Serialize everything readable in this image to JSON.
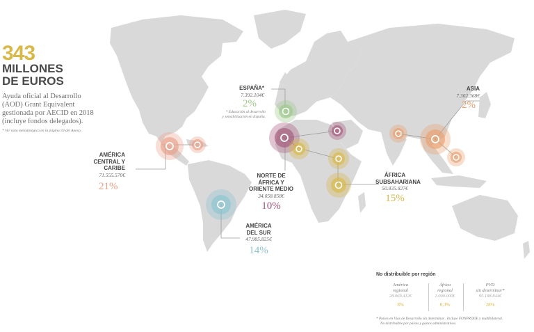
{
  "header": {
    "amount": "343",
    "line1": "MILLONES",
    "line2": "DE EUROS",
    "description": [
      "Ayuda oficial al Desarrollo",
      "(AOD) Grant Equivalent",
      "gestionada por AECID en 2018",
      "(incluye fondos delegados)."
    ],
    "note": "* Ver nota metodológica en la página 59 del Anexo."
  },
  "colors": {
    "america_central": "#e8a08a",
    "espana": "#9cc98a",
    "norte_africa": "#a5577a",
    "africa_subsahariana": "#d9b84a",
    "asia": "#e8a070",
    "america_sur": "#8cc4d0",
    "map": "#d9d9d9"
  },
  "regions": {
    "america_central": {
      "name": [
        "AMÉRICA",
        "CENTRAL Y",
        "CARIBE"
      ],
      "amount": "71.555.570€",
      "pct": "21%"
    },
    "espana": {
      "name": [
        "ESPAÑA*"
      ],
      "amount": "7.392.104€",
      "pct": "2%",
      "note": [
        "* Educación al desarrollo",
        "y sensibilización en España."
      ]
    },
    "norte_africa": {
      "name": [
        "NORTE DE",
        "ÁFRICA Y",
        "ORIENTE MEDIO"
      ],
      "amount": "34.058.858€",
      "pct": "10%"
    },
    "africa_subsahariana": {
      "name": [
        "ÁFRICA",
        "SUBSAHARIANA"
      ],
      "amount": "50.835.827€",
      "pct": "15%"
    },
    "asia": {
      "name": [
        "ASIA"
      ],
      "amount": "7.302.368€",
      "pct": "2%"
    },
    "america_sur": {
      "name": [
        "AMÉRICA",
        "DEL SUR"
      ],
      "amount": "47.985.825€",
      "pct": "14%"
    }
  },
  "no_distribuible": {
    "title": "No distribuible por región",
    "columns": [
      {
        "label": [
          "América",
          "regional"
        ],
        "amount": "28.069.412€",
        "pct": "8%"
      },
      {
        "label": [
          "África",
          "regional"
        ],
        "amount": "1.000.000€",
        "pct": "0,3%"
      },
      {
        "label": [
          "PVD",
          "sin determinar*"
        ],
        "amount": "95.188.844€",
        "pct": "28%"
      }
    ],
    "footnote": [
      "* Países en Vías de Desarrollo sin determinar . Incluye FONPRODE y multibilateral.",
      "No distribuible por países y gastos administrativos."
    ]
  }
}
